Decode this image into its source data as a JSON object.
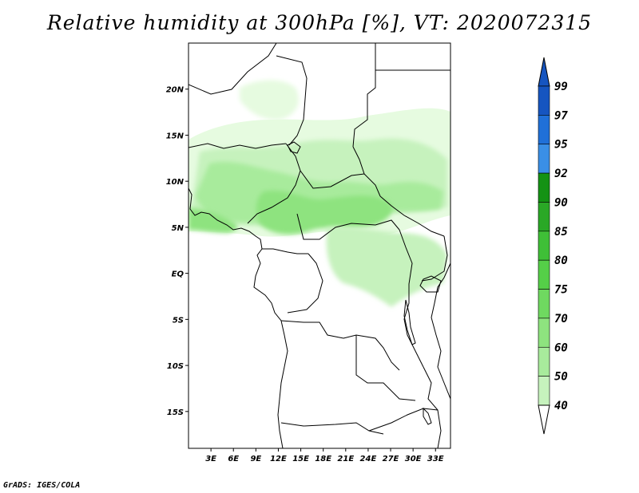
{
  "title": "Relative humidity at 300hPa [%], VT: 2020072315",
  "credit": "GrADS: IGES/COLA",
  "map": {
    "lat_range": [
      -19,
      25
    ],
    "lon_range": [
      0,
      35
    ],
    "lat_ticks": [
      {
        "value": 20,
        "label": "20N"
      },
      {
        "value": 15,
        "label": "15N"
      },
      {
        "value": 10,
        "label": "10N"
      },
      {
        "value": 5,
        "label": "5N"
      },
      {
        "value": 0,
        "label": "EQ"
      },
      {
        "value": -5,
        "label": "5S"
      },
      {
        "value": -10,
        "label": "10S"
      },
      {
        "value": -15,
        "label": "15S"
      }
    ],
    "lon_ticks": [
      {
        "value": 3,
        "label": "3E"
      },
      {
        "value": 6,
        "label": "6E"
      },
      {
        "value": 9,
        "label": "9E"
      },
      {
        "value": 12,
        "label": "12E"
      },
      {
        "value": 15,
        "label": "15E"
      },
      {
        "value": 18,
        "label": "18E"
      },
      {
        "value": 21,
        "label": "21E"
      },
      {
        "value": 24,
        "label": "24E"
      },
      {
        "value": 27,
        "label": "27E"
      },
      {
        "value": 30,
        "label": "30E"
      },
      {
        "value": 33,
        "label": "33E"
      }
    ],
    "field_color_light": "#e6ffe0",
    "field_color_mid": "#c8f5c0",
    "field_color_strong": "#9ee88f",
    "border_color": "#000000"
  },
  "colorbar": {
    "levels": [
      {
        "label": "40",
        "color": "#e6fbe0"
      },
      {
        "label": "50",
        "color": "#c6f2bd"
      },
      {
        "label": "60",
        "color": "#a8eb9c"
      },
      {
        "label": "70",
        "color": "#8ee37f"
      },
      {
        "label": "75",
        "color": "#6fd960"
      },
      {
        "label": "80",
        "color": "#55cf48"
      },
      {
        "label": "85",
        "color": "#3fbf37"
      },
      {
        "label": "90",
        "color": "#2aa826"
      },
      {
        "label": "92",
        "color": "#149214"
      },
      {
        "label": "95",
        "color": "#3a8fe6"
      },
      {
        "label": "97",
        "color": "#2070d8"
      },
      {
        "label": "99",
        "color": "#1655c0"
      }
    ],
    "top_tip_color": "#1655c0",
    "bottom_tip_color": "#ffffff"
  }
}
